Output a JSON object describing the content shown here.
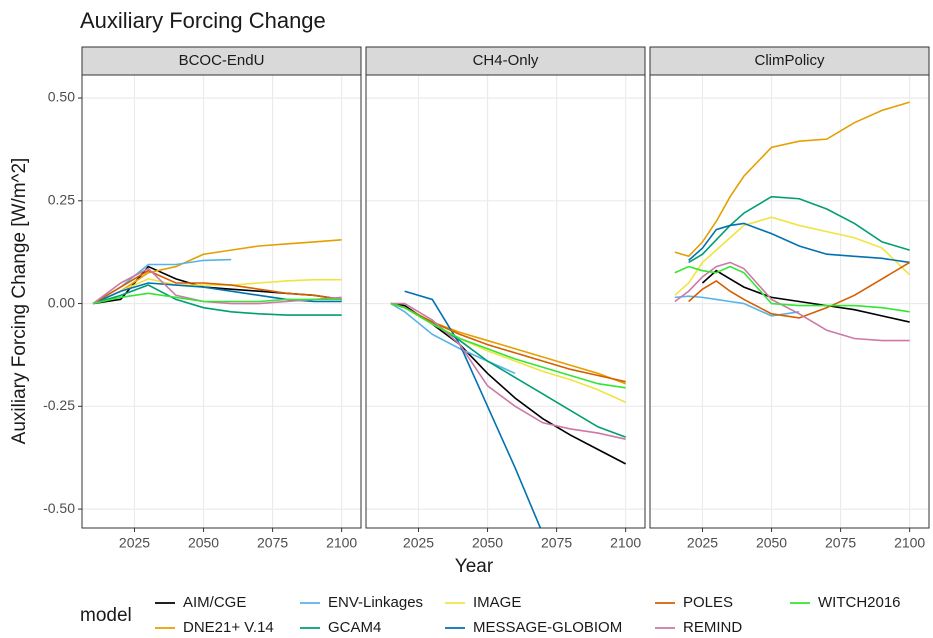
{
  "title": "Auxiliary Forcing Change",
  "x_label": "Year",
  "y_label": "Auxiliary Forcing Change [W/m^2]",
  "legend_title": "model",
  "chart_data": [
    {
      "type": "line",
      "title": "BCOC-EndU",
      "x": [
        2010,
        2020,
        2030,
        2040,
        2050,
        2060,
        2070,
        2080,
        2090,
        2100
      ],
      "xlim": [
        2006,
        2107
      ],
      "ylim": [
        -0.546,
        0.556
      ],
      "xticks": [
        2025,
        2050,
        2075,
        2100
      ],
      "yticks": [
        {
          "value": -0.5,
          "label": "-0.50"
        },
        {
          "value": -0.25,
          "label": "-0.25"
        },
        {
          "value": 0,
          "label": "0.00"
        },
        {
          "value": 0.25,
          "label": "0.25"
        },
        {
          "value": 0.5,
          "label": "0.50"
        }
      ],
      "grid": true,
      "series": [
        {
          "name": "AIM/CGE",
          "color": "#000000",
          "values": [
            0,
            0.01,
            0.09,
            0.06,
            0.04,
            0.035,
            0.03,
            0.025,
            0.02,
            0.01
          ]
        },
        {
          "name": "DNE21+ V.14",
          "color": "#E69F00",
          "values": [
            0,
            0.03,
            0.075,
            0.09,
            0.12,
            0.13,
            0.14,
            0.145,
            0.15,
            0.155
          ]
        },
        {
          "name": "ENV-Linkages",
          "color": "#56B4E9",
          "values": [
            0,
            0.04,
            0.095,
            0.095,
            0.105,
            0.107,
            null,
            null,
            null,
            null
          ]
        },
        {
          "name": "GCAM4",
          "color": "#009E73",
          "values": [
            0,
            0.02,
            0.045,
            0.01,
            -0.01,
            -0.02,
            -0.025,
            -0.028,
            -0.028,
            -0.028
          ]
        },
        {
          "name": "IMAGE",
          "color": "#F0E442",
          "values": [
            0,
            0.03,
            0.06,
            0.045,
            0.045,
            0.045,
            0.05,
            0.055,
            0.058,
            0.058
          ]
        },
        {
          "name": "MESSAGE-GLOBIOM",
          "color": "#0072B2",
          "values": [
            0,
            0.03,
            0.05,
            0.045,
            0.04,
            0.03,
            0.02,
            0.01,
            0.005,
            0.005
          ]
        },
        {
          "name": "POLES",
          "color": "#D55E00",
          "values": [
            0,
            0.04,
            0.08,
            0.05,
            0.05,
            0.045,
            0.035,
            0.025,
            0.02,
            0.01
          ]
        },
        {
          "name": "REMIND",
          "color": "#CC79A7",
          "values": [
            0,
            0.05,
            0.085,
            0.02,
            0.005,
            0,
            0,
            0.005,
            0.01,
            0.015
          ]
        },
        {
          "name": "WITCH2016",
          "color": "#33E633",
          "values": [
            0,
            0.015,
            0.025,
            0.015,
            0.005,
            0.005,
            0.005,
            0.01,
            0.01,
            0.01
          ]
        }
      ]
    },
    {
      "type": "line",
      "title": "CH4-Only",
      "x": [
        2015,
        2020,
        2030,
        2040,
        2050,
        2060,
        2070,
        2080,
        2090,
        2100
      ],
      "xlim": [
        2006,
        2107
      ],
      "ylim": [
        -0.546,
        0.556
      ],
      "xticks": [
        2025,
        2050,
        2075,
        2100
      ],
      "yticks": [
        -0.5,
        -0.25,
        0,
        0.25,
        0.5
      ],
      "grid": true,
      "series": [
        {
          "name": "AIM/CGE",
          "color": "#000000",
          "values": [
            0,
            -0.005,
            -0.05,
            -0.1,
            -0.17,
            -0.23,
            -0.28,
            -0.32,
            -0.355,
            -0.39
          ]
        },
        {
          "name": "DNE21+ V.14",
          "color": "#E69F00",
          "values": [
            0,
            -0.01,
            -0.045,
            -0.07,
            -0.09,
            -0.11,
            -0.13,
            -0.15,
            -0.17,
            -0.195
          ]
        },
        {
          "name": "ENV-Linkages",
          "color": "#56B4E9",
          "values": [
            0,
            -0.02,
            -0.075,
            -0.11,
            -0.14,
            -0.17,
            null,
            null,
            null,
            null
          ]
        },
        {
          "name": "GCAM4",
          "color": "#009E73",
          "values": [
            0,
            -0.01,
            -0.045,
            -0.09,
            -0.14,
            -0.18,
            -0.22,
            -0.26,
            -0.3,
            -0.325
          ]
        },
        {
          "name": "IMAGE",
          "color": "#F0E442",
          "values": [
            0,
            -0.01,
            -0.05,
            -0.085,
            -0.115,
            -0.14,
            -0.165,
            -0.185,
            -0.21,
            -0.24
          ]
        },
        {
          "name": "MESSAGE-GLOBIOM",
          "color": "#0072B2",
          "values": [
            null,
            0.03,
            0.01,
            -0.1,
            -0.25,
            -0.4,
            -0.56,
            null,
            null,
            null
          ]
        },
        {
          "name": "POLES",
          "color": "#D55E00",
          "values": [
            0,
            -0.01,
            -0.045,
            -0.075,
            -0.1,
            -0.12,
            -0.14,
            -0.16,
            -0.175,
            -0.19
          ]
        },
        {
          "name": "REMIND",
          "color": "#CC79A7",
          "values": [
            0,
            0,
            -0.04,
            -0.1,
            -0.2,
            -0.25,
            -0.29,
            -0.305,
            -0.315,
            -0.33
          ]
        },
        {
          "name": "WITCH2016",
          "color": "#33E633",
          "values": [
            0,
            -0.01,
            -0.05,
            -0.085,
            -0.11,
            -0.135,
            -0.155,
            -0.175,
            -0.195,
            -0.205
          ]
        }
      ]
    },
    {
      "type": "line",
      "title": "ClimPolicy",
      "x": [
        2015,
        2020,
        2025,
        2030,
        2035,
        2040,
        2050,
        2060,
        2070,
        2080,
        2090,
        2100
      ],
      "xlim": [
        2006,
        2107
      ],
      "ylim": [
        -0.546,
        0.556
      ],
      "xticks": [
        2025,
        2050,
        2075,
        2100
      ],
      "yticks": [
        -0.5,
        -0.25,
        0,
        0.25,
        0.5
      ],
      "grid": true,
      "series": [
        {
          "name": "AIM/CGE",
          "color": "#000000",
          "values": [
            null,
            null,
            0.05,
            0.08,
            0.06,
            0.04,
            0.015,
            0.005,
            -0.005,
            -0.015,
            -0.03,
            -0.045
          ]
        },
        {
          "name": "DNE21+ V.14",
          "color": "#E69F00",
          "values": [
            0.125,
            0.115,
            0.15,
            0.2,
            0.26,
            0.31,
            0.38,
            0.395,
            0.4,
            0.44,
            0.47,
            0.49
          ]
        },
        {
          "name": "ENV-Linkages",
          "color": "#56B4E9",
          "values": [
            0.015,
            0.018,
            0.015,
            0.01,
            0.005,
            0,
            -0.03,
            -0.02,
            null,
            null,
            null,
            null
          ]
        },
        {
          "name": "GCAM4",
          "color": "#009E73",
          "values": [
            null,
            0.1,
            0.12,
            0.155,
            0.19,
            0.22,
            0.26,
            0.255,
            0.23,
            0.195,
            0.15,
            0.13
          ]
        },
        {
          "name": "IMAGE",
          "color": "#F0E442",
          "values": [
            0.02,
            0.05,
            0.1,
            0.13,
            0.16,
            0.19,
            0.21,
            0.19,
            0.175,
            0.16,
            0.135,
            0.07
          ]
        },
        {
          "name": "MESSAGE-GLOBIOM",
          "color": "#0072B2",
          "values": [
            null,
            0.105,
            0.135,
            0.18,
            0.19,
            0.195,
            0.17,
            0.14,
            0.12,
            0.115,
            0.11,
            0.1
          ]
        },
        {
          "name": "POLES",
          "color": "#D55E00",
          "values": [
            null,
            0.005,
            0.035,
            0.055,
            0.03,
            0.01,
            -0.025,
            -0.035,
            -0.01,
            0.02,
            0.06,
            0.1
          ]
        },
        {
          "name": "REMIND",
          "color": "#CC79A7",
          "values": [
            0.005,
            0.03,
            0.065,
            0.09,
            0.1,
            0.085,
            0.01,
            -0.025,
            -0.065,
            -0.085,
            -0.09,
            -0.09
          ]
        },
        {
          "name": "WITCH2016",
          "color": "#33E633",
          "values": [
            0.075,
            0.09,
            0.08,
            0.075,
            0.09,
            0.075,
            0,
            -0.005,
            -0.005,
            -0.005,
            -0.01,
            -0.02
          ]
        }
      ]
    }
  ]
}
